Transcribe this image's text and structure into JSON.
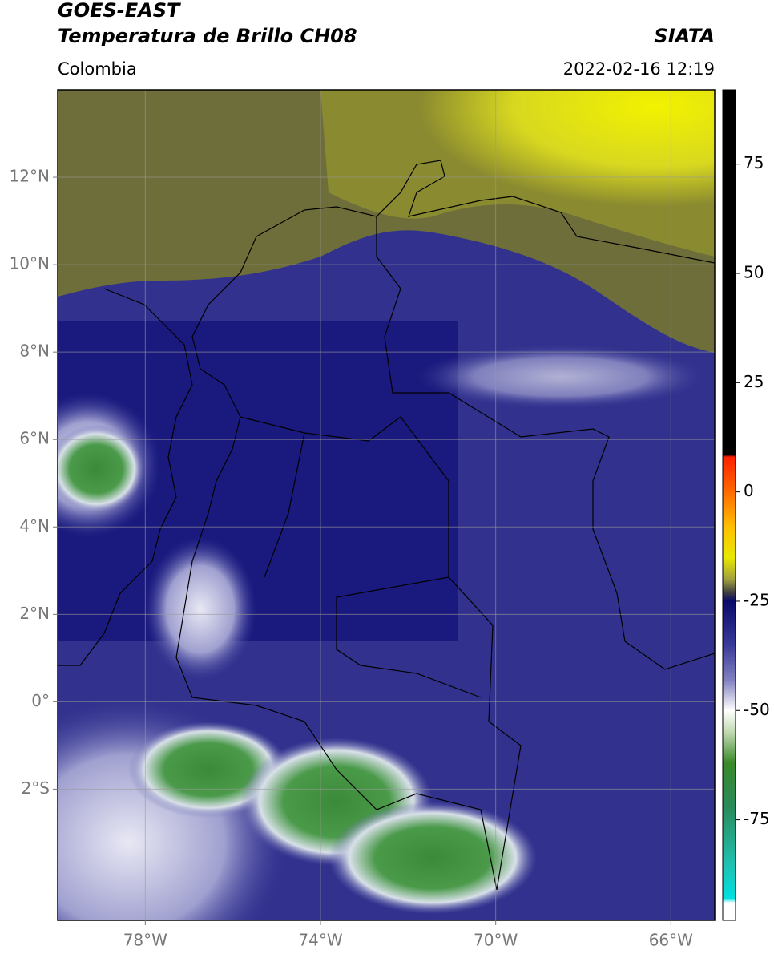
{
  "header": {
    "title": "GOES-EAST",
    "subtitle": "Temperatura de Brillo CH08",
    "source": "SIATA",
    "region": "Colombia",
    "datetime": "2022-02-16 12:19"
  },
  "map": {
    "xlim": [
      -80,
      -65
    ],
    "ylim": [
      -5,
      14
    ],
    "grid": true,
    "xticks": [
      {
        "value": -78,
        "label": "78°W"
      },
      {
        "value": -74,
        "label": "74°W"
      },
      {
        "value": -70,
        "label": "70°W"
      },
      {
        "value": -66,
        "label": "66°W"
      }
    ],
    "yticks": [
      {
        "value": 12,
        "label": "12°N"
      },
      {
        "value": 10,
        "label": "10°N"
      },
      {
        "value": 8,
        "label": "8°N"
      },
      {
        "value": 6,
        "label": "6°N"
      },
      {
        "value": 4,
        "label": "4°N"
      },
      {
        "value": 2,
        "label": "2°N"
      },
      {
        "value": 0,
        "label": "0°"
      },
      {
        "value": -2,
        "label": "2°S"
      }
    ]
  },
  "colorbar": {
    "lim": [
      -98,
      92
    ],
    "ticks": [
      75,
      50,
      25,
      0,
      -25,
      -50,
      -75
    ],
    "colormap": [
      {
        "value": 92,
        "color": "#000000"
      },
      {
        "value": 8.5,
        "color": "#000000"
      },
      {
        "value": 8,
        "color": "#ff2000"
      },
      {
        "value": 0,
        "color": "#ff6a00"
      },
      {
        "value": -8,
        "color": "#ffc000"
      },
      {
        "value": -15,
        "color": "#e8e800"
      },
      {
        "value": -20,
        "color": "#a0a040"
      },
      {
        "value": -23,
        "color": "#404040"
      },
      {
        "value": -25,
        "color": "#0a0a6a"
      },
      {
        "value": -35,
        "color": "#3a3a9a"
      },
      {
        "value": -43,
        "color": "#8080c0"
      },
      {
        "value": -50,
        "color": "#ffffff"
      },
      {
        "value": -55,
        "color": "#c0d8b0"
      },
      {
        "value": -62,
        "color": "#3a8a2a"
      },
      {
        "value": -72,
        "color": "#2a8a5a"
      },
      {
        "value": -85,
        "color": "#20c0b0"
      },
      {
        "value": -93,
        "color": "#00e0e0"
      },
      {
        "value": -94,
        "color": "#ffffff"
      },
      {
        "value": -98,
        "color": "#ffffff"
      }
    ]
  }
}
